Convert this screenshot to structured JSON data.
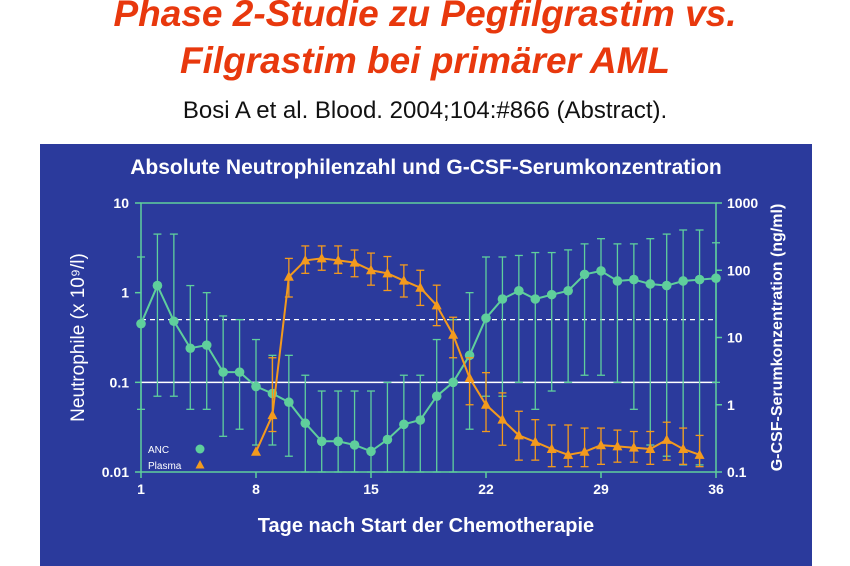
{
  "slide": {
    "title_line1": "Phase 2-Studie zu Pegfilgrastim vs.",
    "title_line2": "Filgrastim bei primärer AML",
    "citation": "Bosi A et al. Blood. 2004;104:#866 (Abstract)."
  },
  "colors": {
    "panel": "#2b3a9c",
    "anc": "#5fcf9c",
    "plasma": "#f39a1e",
    "title": "#e8380d",
    "axis": "#5fcf9c",
    "refline": "#ffffff"
  },
  "chart_data": {
    "type": "line",
    "title": "Absolute Neutrophilenzahl und G-CSF-Serumkonzentration",
    "xlabel": "Tage nach Start der Chemotherapie",
    "ylabel_left": "Neutrophile (x 10⁹/l)",
    "ylabel_right": "G-CSF-Serumkonzentration (ng/ml)",
    "x_ticks": [
      "1",
      "8",
      "15",
      "22",
      "29",
      "36"
    ],
    "x_tick_values": [
      1,
      8,
      15,
      22,
      29,
      36
    ],
    "xlim": [
      1,
      36
    ],
    "y_left_ticks": [
      "10",
      "1",
      "0.1",
      "0.01"
    ],
    "y_left_tick_values": [
      10,
      1,
      0.1,
      0.01
    ],
    "y_left_lim": [
      0.01,
      10
    ],
    "y_left_scale": "log",
    "y_right_ticks": [
      "1000",
      "100",
      "10",
      "1",
      "0.1"
    ],
    "y_right_tick_values": [
      1000,
      100,
      10,
      1,
      0.1
    ],
    "y_right_lim": [
      0.1,
      1000
    ],
    "y_right_scale": "log",
    "reference_lines_left": [
      0.5,
      0.1
    ],
    "legend": [
      {
        "label": "ANC",
        "marker": "circle"
      },
      {
        "label": "Plasma",
        "marker": "triangle"
      }
    ],
    "legend_position": "bottom-left",
    "series": [
      {
        "name": "ANC",
        "axis": "left",
        "marker": "circle",
        "x": [
          1,
          2,
          3,
          4,
          5,
          6,
          7,
          8,
          9,
          10,
          11,
          12,
          13,
          14,
          15,
          16,
          17,
          18,
          19,
          20,
          21,
          22,
          23,
          24,
          25,
          26,
          27,
          28,
          29,
          30,
          31,
          32,
          33,
          34,
          35,
          36
        ],
        "y": [
          0.45,
          1.2,
          0.48,
          0.24,
          0.26,
          0.13,
          0.13,
          0.09,
          0.075,
          0.06,
          0.035,
          0.022,
          0.022,
          0.02,
          0.017,
          0.023,
          0.034,
          0.038,
          0.07,
          0.1,
          0.2,
          0.52,
          0.85,
          1.05,
          0.85,
          0.95,
          1.05,
          1.6,
          1.75,
          1.35,
          1.4,
          1.25,
          1.2,
          1.35,
          1.4,
          1.45
        ],
        "y_low": [
          0.05,
          0.07,
          0.07,
          0.05,
          0.05,
          0.025,
          0.03,
          0.02,
          0.02,
          0.015,
          0.01,
          0.01,
          0.01,
          0.01,
          0.01,
          0.01,
          0.01,
          0.01,
          0.01,
          0.01,
          0.03,
          0.07,
          0.07,
          0.1,
          0.05,
          0.08,
          0.1,
          0.12,
          0.12,
          0.1,
          0.05,
          0.02,
          0.015,
          0.012,
          0.012,
          0.1
        ],
        "y_high": [
          2.5,
          4.5,
          4.5,
          1.2,
          1.0,
          0.55,
          0.5,
          0.3,
          0.2,
          0.2,
          0.12,
          0.08,
          0.08,
          0.08,
          0.08,
          0.1,
          0.12,
          0.12,
          0.3,
          0.5,
          1.0,
          2.5,
          2.5,
          2.6,
          2.8,
          2.8,
          3.0,
          3.5,
          4.0,
          3.5,
          3.5,
          4.0,
          4.5,
          5.0,
          5.0,
          3.6
        ]
      },
      {
        "name": "Plasma",
        "axis": "right",
        "marker": "triangle",
        "x": [
          8,
          9,
          10,
          11,
          12,
          13,
          14,
          15,
          16,
          17,
          18,
          19,
          20,
          21,
          22,
          23,
          24,
          25,
          26,
          27,
          28,
          29,
          30,
          31,
          32,
          33,
          34,
          35
        ],
        "y": [
          0.2,
          0.7,
          80,
          140,
          150,
          140,
          130,
          100,
          90,
          70,
          55,
          30,
          11,
          2.5,
          1,
          0.6,
          0.35,
          0.28,
          0.22,
          0.18,
          0.2,
          0.25,
          0.24,
          0.23,
          0.22,
          0.3,
          0.22,
          0.18
        ],
        "y_low": [
          0.2,
          0.4,
          40,
          90,
          100,
          90,
          80,
          60,
          50,
          40,
          30,
          15,
          5,
          1,
          0.4,
          0.25,
          0.15,
          0.15,
          0.12,
          0.12,
          0.12,
          0.13,
          0.14,
          0.14,
          0.13,
          0.15,
          0.13,
          0.12
        ],
        "y_high": [
          0.2,
          5,
          150,
          230,
          230,
          230,
          200,
          180,
          160,
          120,
          100,
          60,
          20,
          5,
          3,
          1.5,
          0.8,
          0.6,
          0.5,
          0.5,
          0.45,
          0.45,
          0.42,
          0.4,
          0.4,
          0.55,
          0.45,
          0.35
        ]
      }
    ]
  }
}
